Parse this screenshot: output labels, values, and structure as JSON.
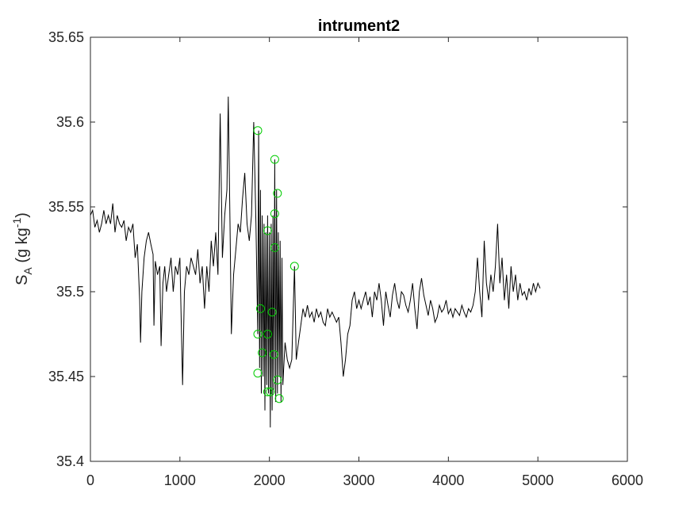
{
  "chart_data": {
    "type": "line",
    "title": "intrument2",
    "ylabel": {
      "main": "S",
      "sub": "A",
      "unit_open": " (g kg",
      "unit_sup": "-1",
      "unit_close": ")"
    },
    "xlabel": "",
    "xlim": [
      0,
      6000
    ],
    "ylim": [
      35.4,
      35.65
    ],
    "xticks": [
      "0",
      "1000",
      "2000",
      "3000",
      "4000",
      "5000",
      "6000"
    ],
    "xtick_values": [
      0,
      1000,
      2000,
      3000,
      4000,
      5000,
      6000
    ],
    "yticks": [
      "35.4",
      "35.45",
      "35.5",
      "35.55",
      "35.6",
      "35.65"
    ],
    "ytick_values": [
      35.4,
      35.45,
      35.5,
      35.55,
      35.6,
      35.65
    ],
    "grid": false,
    "box": true,
    "series": [
      {
        "color": "#000000",
        "style": "line",
        "points": [
          [
            0,
            35.545
          ],
          [
            25,
            35.548
          ],
          [
            50,
            35.538
          ],
          [
            75,
            35.542
          ],
          [
            100,
            35.535
          ],
          [
            125,
            35.54
          ],
          [
            150,
            35.548
          ],
          [
            175,
            35.54
          ],
          [
            200,
            35.545
          ],
          [
            225,
            35.54
          ],
          [
            250,
            35.552
          ],
          [
            275,
            35.535
          ],
          [
            300,
            35.545
          ],
          [
            325,
            35.54
          ],
          [
            350,
            35.538
          ],
          [
            375,
            35.542
          ],
          [
            400,
            35.53
          ],
          [
            425,
            35.538
          ],
          [
            450,
            35.535
          ],
          [
            475,
            35.54
          ],
          [
            500,
            35.52
          ],
          [
            525,
            35.528
          ],
          [
            550,
            35.495
          ],
          [
            560,
            35.47
          ],
          [
            575,
            35.5
          ],
          [
            600,
            35.52
          ],
          [
            625,
            35.53
          ],
          [
            650,
            35.535
          ],
          [
            675,
            35.528
          ],
          [
            700,
            35.522
          ],
          [
            710,
            35.48
          ],
          [
            725,
            35.518
          ],
          [
            750,
            35.51
          ],
          [
            775,
            35.515
          ],
          [
            790,
            35.468
          ],
          [
            810,
            35.505
          ],
          [
            830,
            35.515
          ],
          [
            850,
            35.5
          ],
          [
            875,
            35.51
          ],
          [
            900,
            35.52
          ],
          [
            925,
            35.5
          ],
          [
            950,
            35.515
          ],
          [
            975,
            35.51
          ],
          [
            1000,
            35.52
          ],
          [
            1030,
            35.445
          ],
          [
            1050,
            35.5
          ],
          [
            1075,
            35.515
          ],
          [
            1100,
            35.51
          ],
          [
            1125,
            35.52
          ],
          [
            1150,
            35.515
          ],
          [
            1175,
            35.51
          ],
          [
            1200,
            35.525
          ],
          [
            1225,
            35.505
          ],
          [
            1250,
            35.515
          ],
          [
            1275,
            35.49
          ],
          [
            1300,
            35.515
          ],
          [
            1325,
            35.5
          ],
          [
            1350,
            35.53
          ],
          [
            1375,
            35.515
          ],
          [
            1400,
            35.535
          ],
          [
            1425,
            35.51
          ],
          [
            1450,
            35.605
          ],
          [
            1475,
            35.52
          ],
          [
            1500,
            35.545
          ],
          [
            1525,
            35.56
          ],
          [
            1540,
            35.615
          ],
          [
            1560,
            35.54
          ],
          [
            1575,
            35.475
          ],
          [
            1600,
            35.51
          ],
          [
            1625,
            35.525
          ],
          [
            1650,
            35.54
          ],
          [
            1675,
            35.535
          ],
          [
            1700,
            35.555
          ],
          [
            1725,
            35.57
          ],
          [
            1750,
            35.54
          ],
          [
            1775,
            35.53
          ],
          [
            1800,
            35.545
          ],
          [
            1825,
            35.6
          ],
          [
            1850,
            35.54
          ],
          [
            1870,
            35.475
          ],
          [
            1880,
            35.595
          ],
          [
            1890,
            35.455
          ],
          [
            1900,
            35.56
          ],
          [
            1910,
            35.44
          ],
          [
            1920,
            35.545
          ],
          [
            1930,
            35.45
          ],
          [
            1940,
            35.54
          ],
          [
            1950,
            35.43
          ],
          [
            1960,
            35.535
          ],
          [
            1970,
            35.445
          ],
          [
            1980,
            35.545
          ],
          [
            1990,
            35.44
          ],
          [
            2000,
            35.535
          ],
          [
            2010,
            35.42
          ],
          [
            2020,
            35.54
          ],
          [
            2030,
            35.43
          ],
          [
            2040,
            35.545
          ],
          [
            2050,
            35.44
          ],
          [
            2060,
            35.578
          ],
          [
            2070,
            35.435
          ],
          [
            2080,
            35.56
          ],
          [
            2090,
            35.44
          ],
          [
            2100,
            35.535
          ],
          [
            2110,
            35.45
          ],
          [
            2120,
            35.53
          ],
          [
            2130,
            35.435
          ],
          [
            2140,
            35.52
          ],
          [
            2150,
            35.445
          ],
          [
            2160,
            35.455
          ],
          [
            2175,
            35.47
          ],
          [
            2200,
            35.46
          ],
          [
            2225,
            35.455
          ],
          [
            2250,
            35.46
          ],
          [
            2280,
            35.515
          ],
          [
            2300,
            35.46
          ],
          [
            2325,
            35.47
          ],
          [
            2350,
            35.48
          ],
          [
            2375,
            35.49
          ],
          [
            2400,
            35.485
          ],
          [
            2425,
            35.492
          ],
          [
            2450,
            35.485
          ],
          [
            2475,
            35.488
          ],
          [
            2500,
            35.482
          ],
          [
            2525,
            35.49
          ],
          [
            2550,
            35.485
          ],
          [
            2575,
            35.488
          ],
          [
            2600,
            35.482
          ],
          [
            2625,
            35.48
          ],
          [
            2650,
            35.49
          ],
          [
            2675,
            35.485
          ],
          [
            2700,
            35.488
          ],
          [
            2725,
            35.485
          ],
          [
            2750,
            35.482
          ],
          [
            2775,
            35.485
          ],
          [
            2800,
            35.47
          ],
          [
            2825,
            35.45
          ],
          [
            2850,
            35.46
          ],
          [
            2875,
            35.475
          ],
          [
            2900,
            35.48
          ],
          [
            2925,
            35.495
          ],
          [
            2950,
            35.5
          ],
          [
            2975,
            35.49
          ],
          [
            3000,
            35.495
          ],
          [
            3025,
            35.49
          ],
          [
            3050,
            35.495
          ],
          [
            3075,
            35.5
          ],
          [
            3100,
            35.492
          ],
          [
            3125,
            35.497
          ],
          [
            3150,
            35.485
          ],
          [
            3175,
            35.5
          ],
          [
            3200,
            35.495
          ],
          [
            3225,
            35.505
          ],
          [
            3250,
            35.495
          ],
          [
            3275,
            35.48
          ],
          [
            3300,
            35.5
          ],
          [
            3325,
            35.492
          ],
          [
            3350,
            35.485
          ],
          [
            3375,
            35.498
          ],
          [
            3400,
            35.505
          ],
          [
            3425,
            35.495
          ],
          [
            3450,
            35.49
          ],
          [
            3475,
            35.5
          ],
          [
            3500,
            35.498
          ],
          [
            3525,
            35.492
          ],
          [
            3550,
            35.488
          ],
          [
            3575,
            35.495
          ],
          [
            3600,
            35.505
          ],
          [
            3625,
            35.49
          ],
          [
            3650,
            35.478
          ],
          [
            3675,
            35.5
          ],
          [
            3700,
            35.508
          ],
          [
            3725,
            35.498
          ],
          [
            3750,
            35.492
          ],
          [
            3775,
            35.486
          ],
          [
            3800,
            35.495
          ],
          [
            3825,
            35.49
          ],
          [
            3850,
            35.482
          ],
          [
            3875,
            35.485
          ],
          [
            3900,
            35.492
          ],
          [
            3925,
            35.488
          ],
          [
            3950,
            35.49
          ],
          [
            3975,
            35.495
          ],
          [
            4000,
            35.487
          ],
          [
            4025,
            35.49
          ],
          [
            4050,
            35.485
          ],
          [
            4075,
            35.49
          ],
          [
            4100,
            35.488
          ],
          [
            4125,
            35.486
          ],
          [
            4150,
            35.492
          ],
          [
            4175,
            35.488
          ],
          [
            4200,
            35.485
          ],
          [
            4225,
            35.49
          ],
          [
            4250,
            35.488
          ],
          [
            4275,
            35.492
          ],
          [
            4300,
            35.5
          ],
          [
            4325,
            35.52
          ],
          [
            4350,
            35.5
          ],
          [
            4375,
            35.485
          ],
          [
            4400,
            35.53
          ],
          [
            4425,
            35.505
          ],
          [
            4450,
            35.495
          ],
          [
            4475,
            35.51
          ],
          [
            4500,
            35.5
          ],
          [
            4525,
            35.515
          ],
          [
            4550,
            35.54
          ],
          [
            4575,
            35.505
          ],
          [
            4600,
            35.52
          ],
          [
            4625,
            35.495
          ],
          [
            4650,
            35.51
          ],
          [
            4675,
            35.49
          ],
          [
            4700,
            35.515
          ],
          [
            4725,
            35.5
          ],
          [
            4750,
            35.51
          ],
          [
            4775,
            35.495
          ],
          [
            4800,
            35.505
          ],
          [
            4825,
            35.498
          ],
          [
            4850,
            35.5
          ],
          [
            4875,
            35.495
          ],
          [
            4900,
            35.502
          ],
          [
            4925,
            35.498
          ],
          [
            4950,
            35.505
          ],
          [
            4975,
            35.5
          ],
          [
            5000,
            35.505
          ],
          [
            5025,
            35.502
          ]
        ]
      },
      {
        "color": "#00cc00",
        "style": "circle",
        "points": [
          [
            1870,
            35.595
          ],
          [
            2060,
            35.578
          ],
          [
            2090,
            35.558
          ],
          [
            2060,
            35.546
          ],
          [
            1980,
            35.536
          ],
          [
            2060,
            35.526
          ],
          [
            2280,
            35.515
          ],
          [
            1900,
            35.49
          ],
          [
            2030,
            35.488
          ],
          [
            1870,
            35.475
          ],
          [
            1980,
            35.475
          ],
          [
            1920,
            35.464
          ],
          [
            2050,
            35.463
          ],
          [
            1870,
            35.452
          ],
          [
            2090,
            35.448
          ],
          [
            2010,
            35.441
          ],
          [
            1980,
            35.441
          ],
          [
            2110,
            35.437
          ]
        ]
      }
    ]
  }
}
